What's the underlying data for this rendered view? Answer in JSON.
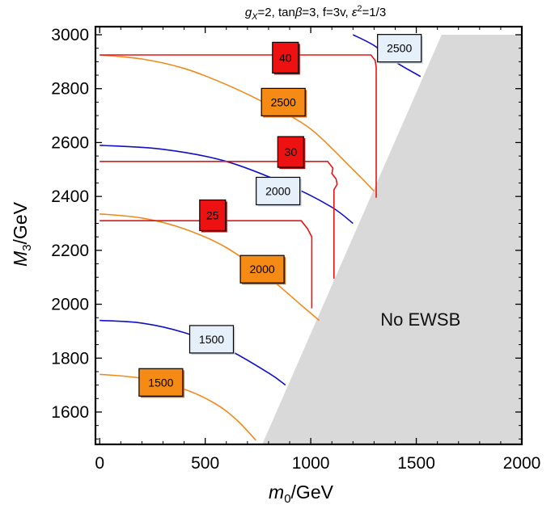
{
  "chart_data": {
    "type": "contour",
    "title": "g_X=2, tanβ=3, f=3v, ε²=1/3",
    "title_parts": {
      "g_sym": "g",
      "g_sub": "X",
      "g_val": "=2, tan",
      "beta": "β",
      "tan_val": "=3, f=3v, ",
      "eps": "ε",
      "eps_sup": "2",
      "eps_val": "=1/3"
    },
    "xlabel": "m_0/GeV",
    "xlabel_parts": {
      "sym": "m",
      "sub": "0",
      "unit": "/GeV"
    },
    "ylabel": "M_3/GeV",
    "ylabel_parts": {
      "sym": "M",
      "sub": "3",
      "unit": "/GeV"
    },
    "xlim": [
      -20,
      2000
    ],
    "ylim": [
      1480,
      3030
    ],
    "x_ticks": [
      0,
      500,
      1000,
      1500,
      2000
    ],
    "y_ticks": [
      1600,
      1800,
      2000,
      2200,
      2400,
      2600,
      2800,
      3000
    ],
    "region": {
      "label": "No EWSB",
      "color": "#d9d9d9",
      "polygon": [
        [
          770,
          1480
        ],
        [
          1620,
          3000
        ],
        [
          2000,
          3000
        ],
        [
          2000,
          1480
        ]
      ]
    },
    "series": [
      {
        "group": "gluino-mass",
        "color": "#1010c8",
        "label": "1500",
        "points": [
          [
            0,
            1940
          ],
          [
            200,
            1930
          ],
          [
            400,
            1895
          ],
          [
            600,
            1835
          ],
          [
            800,
            1745
          ],
          [
            880,
            1700
          ]
        ],
        "label_at": [
          530,
          1870
        ]
      },
      {
        "group": "gluino-mass",
        "color": "#1010c8",
        "label": "2000",
        "points": [
          [
            0,
            2590
          ],
          [
            300,
            2575
          ],
          [
            600,
            2530
          ],
          [
            900,
            2440
          ],
          [
            1100,
            2360
          ],
          [
            1200,
            2300
          ]
        ],
        "label_at": [
          845,
          2420
        ]
      },
      {
        "group": "gluino-mass",
        "color": "#1010c8",
        "label": "2500",
        "points": [
          [
            1200,
            3000
          ],
          [
            1300,
            2960
          ],
          [
            1400,
            2900
          ],
          [
            1520,
            2845
          ]
        ],
        "label_at": [
          1420,
          2950
        ]
      },
      {
        "group": "stop-mass",
        "color": "#f08a1c",
        "label": "1500",
        "points": [
          [
            0,
            1740
          ],
          [
            200,
            1725
          ],
          [
            400,
            1685
          ],
          [
            550,
            1630
          ],
          [
            650,
            1570
          ],
          [
            740,
            1495
          ]
        ],
        "label_at": [
          290,
          1710
        ]
      },
      {
        "group": "stop-mass",
        "color": "#f08a1c",
        "label": "2000",
        "points": [
          [
            0,
            2335
          ],
          [
            200,
            2320
          ],
          [
            400,
            2280
          ],
          [
            600,
            2210
          ],
          [
            800,
            2100
          ],
          [
            950,
            2000
          ],
          [
            1040,
            1940
          ]
        ],
        "label_at": [
          770,
          2130
        ]
      },
      {
        "group": "stop-mass",
        "color": "#f08a1c",
        "label": "2500",
        "points": [
          [
            0,
            2925
          ],
          [
            200,
            2910
          ],
          [
            400,
            2875
          ],
          [
            600,
            2815
          ],
          [
            800,
            2740
          ],
          [
            1000,
            2650
          ],
          [
            1200,
            2500
          ],
          [
            1300,
            2420
          ]
        ],
        "label_at": [
          870,
          2750
        ]
      },
      {
        "group": "fine-tuning",
        "color": "#e81414",
        "label": "25",
        "points": [
          [
            0,
            2310
          ],
          [
            955,
            2310
          ],
          [
            985,
            2280
          ],
          [
            1005,
            2250
          ],
          [
            1005,
            1985
          ]
        ],
        "label_at": [
          535,
          2330
        ]
      },
      {
        "group": "fine-tuning",
        "color": "#e81414",
        "label": "30",
        "points": [
          [
            0,
            2530
          ],
          [
            1080,
            2530
          ],
          [
            1105,
            2505
          ],
          [
            1100,
            2485
          ],
          [
            1120,
            2465
          ],
          [
            1125,
            2445
          ],
          [
            1110,
            2425
          ],
          [
            1110,
            2095
          ]
        ],
        "label_at": [
          905,
          2565
        ]
      },
      {
        "group": "fine-tuning",
        "color": "#e81414",
        "label": "40",
        "points": [
          [
            0,
            2925
          ],
          [
            1285,
            2925
          ],
          [
            1305,
            2905
          ],
          [
            1310,
            2880
          ],
          [
            1310,
            2395
          ]
        ],
        "label_at": [
          880,
          2915
        ]
      }
    ],
    "label_colors": {
      "gluino-mass": {
        "fill": "#e6f0fb",
        "stroke": "#000000",
        "shadow": "#c8d2dc"
      },
      "stop-mass": {
        "fill": "#f58a14",
        "stroke": "#000000",
        "shadow": "#c8661a"
      },
      "fine-tuning": {
        "fill": "#ee1111",
        "stroke": "#000000",
        "shadow": "#a61010"
      }
    },
    "grid": false,
    "frame": true
  }
}
